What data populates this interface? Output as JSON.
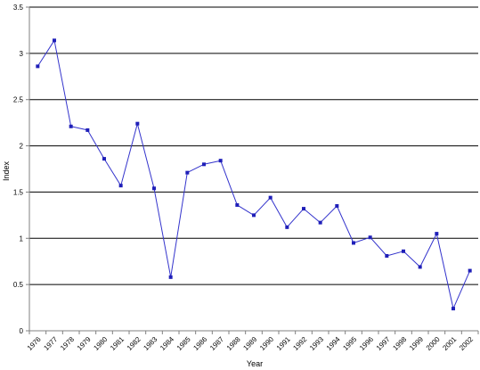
{
  "chart_data": {
    "type": "line",
    "title": "",
    "xlabel": "Year",
    "ylabel": "Index",
    "ylim": [
      0,
      3.5
    ],
    "yticks": [
      "0",
      "0.5",
      "1",
      "1.5",
      "2",
      "2.5",
      "3",
      "3.5"
    ],
    "grid": "horizontal",
    "legend": "none",
    "colors": {
      "line": "#3333cc",
      "marker": "#1f1fb8",
      "grid": "#000000",
      "axis": "#808080"
    },
    "categories": [
      "1976",
      "1977",
      "1978",
      "1979",
      "1980",
      "1981",
      "1982",
      "1983",
      "1984",
      "1985",
      "1986",
      "1987",
      "1988",
      "1989",
      "1990",
      "1991",
      "1992",
      "1993",
      "1994",
      "1995",
      "1996",
      "1997",
      "1998",
      "1999",
      "2000",
      "2001",
      "2002"
    ],
    "series": [
      {
        "values": [
          2.86,
          3.14,
          2.21,
          2.17,
          1.86,
          1.57,
          2.24,
          1.54,
          0.58,
          1.71,
          1.8,
          1.84,
          1.36,
          1.25,
          1.44,
          1.12,
          1.32,
          1.17,
          1.35,
          0.95,
          1.01,
          0.81,
          0.86,
          0.69,
          1.05,
          0.24,
          0.65
        ]
      }
    ]
  }
}
